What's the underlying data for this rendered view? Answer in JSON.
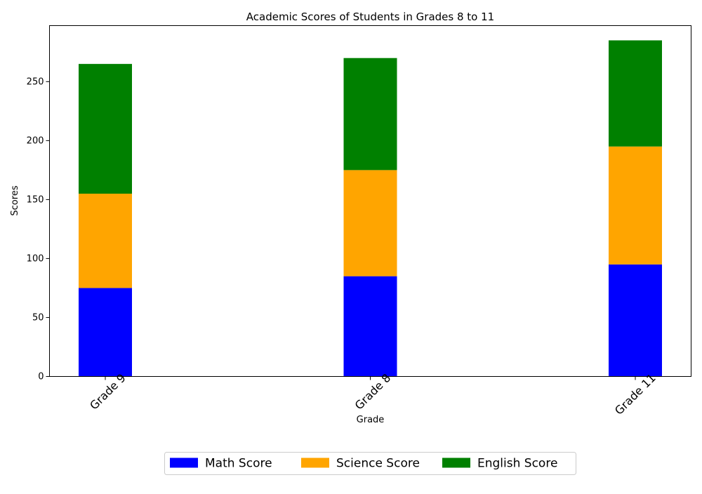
{
  "chart_data": {
    "type": "bar",
    "stacked": true,
    "title": "Academic Scores of Students in Grades 8 to 11",
    "xlabel": "Grade",
    "ylabel": "Scores",
    "categories": [
      "Grade 9",
      "Grade 8",
      "Grade 11"
    ],
    "series": [
      {
        "name": "Math Score",
        "color": "#0000ff",
        "values": [
          75,
          85,
          95
        ]
      },
      {
        "name": "Science Score",
        "color": "#ffa500",
        "values": [
          80,
          90,
          100
        ]
      },
      {
        "name": "English Score",
        "color": "#008000",
        "values": [
          110,
          95,
          90
        ]
      }
    ],
    "ylim": [
      0,
      297.5
    ],
    "yticks": [
      0,
      50,
      100,
      150,
      200,
      250
    ],
    "grid": false,
    "legend_position": "bottom-center"
  }
}
